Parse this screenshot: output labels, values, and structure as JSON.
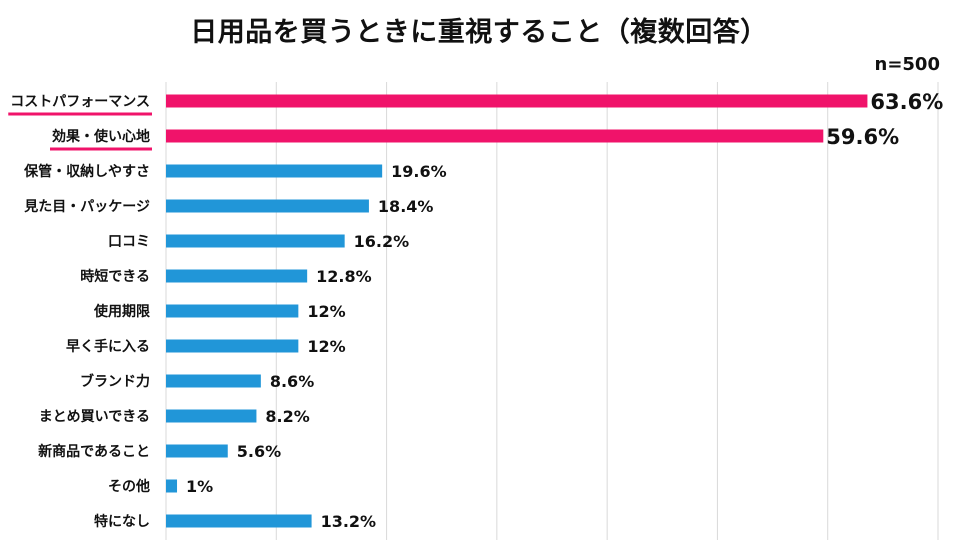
{
  "chart_data": {
    "type": "bar",
    "orientation": "horizontal",
    "title": "日用品を買うときに重視すること（複数回答）",
    "sample_size": "n=500",
    "categories": [
      "コストパフォーマンス",
      "効果・使い心地",
      "保管・収納しやすさ",
      "見た目・パッケージ",
      "口コミ",
      "時短できる",
      "使用期限",
      "早く手に入る",
      "ブランド力",
      "まとめ買いできる",
      "新商品であること",
      "その他",
      "特になし"
    ],
    "values": [
      63.6,
      59.6,
      19.6,
      18.4,
      16.2,
      12.8,
      12,
      12,
      8.6,
      8.2,
      5.6,
      1,
      13.2
    ],
    "value_labels": [
      "63.6%",
      "59.6%",
      "19.6%",
      "18.4%",
      "16.2%",
      "12.8%",
      "12%",
      "12%",
      "8.6%",
      "8.2%",
      "5.6%",
      "1%",
      "13.2%"
    ],
    "highlighted": [
      true,
      true,
      false,
      false,
      false,
      false,
      false,
      false,
      false,
      false,
      false,
      false,
      false
    ],
    "xlim": [
      0,
      70
    ],
    "gridlines": [
      0,
      10,
      20,
      30,
      40,
      50,
      60,
      70
    ],
    "grid": true,
    "xlabel": "",
    "ylabel": "",
    "colors": {
      "highlight": "#f0136a",
      "default": "#2196d8",
      "grid": "#d9d9d9",
      "text": "#111111"
    }
  }
}
